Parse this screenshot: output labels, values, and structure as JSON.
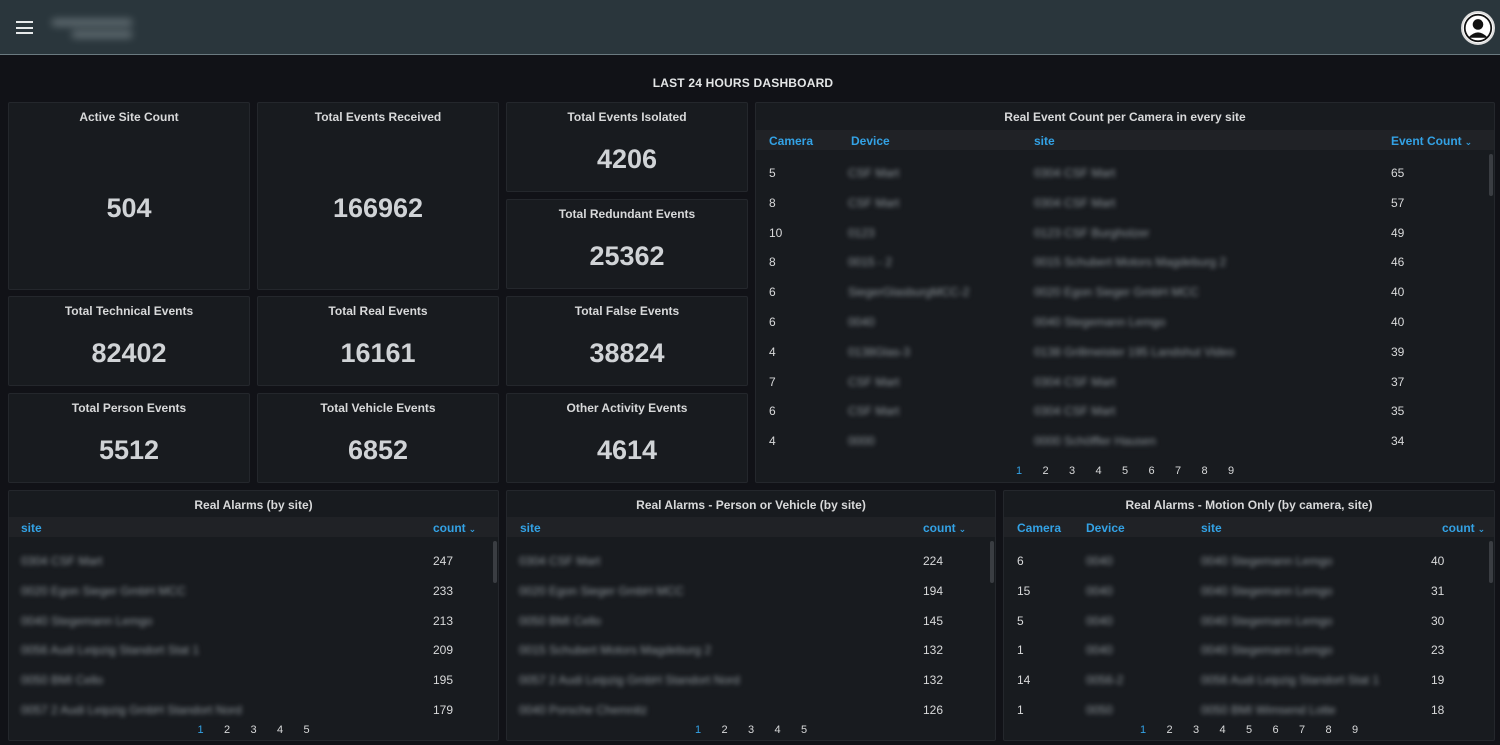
{
  "header": {
    "menu_icon": "hamburger-icon",
    "avatar_icon": "user-avatar-icon"
  },
  "dashboard_title": "LAST 24 HOURS DASHBOARD",
  "stats": {
    "active_site": {
      "title": "Active Site Count",
      "value": "504"
    },
    "events_received": {
      "title": "Total Events Received",
      "value": "166962"
    },
    "events_isolated": {
      "title": "Total Events Isolated",
      "value": "4206"
    },
    "redundant": {
      "title": "Total Redundant Events",
      "value": "25362"
    },
    "technical": {
      "title": "Total Technical Events",
      "value": "82402"
    },
    "real": {
      "title": "Total Real Events",
      "value": "16161"
    },
    "false": {
      "title": "Total False Events",
      "value": "38824"
    },
    "person": {
      "title": "Total Person Events",
      "value": "5512"
    },
    "vehicle": {
      "title": "Total Vehicle Events",
      "value": "6852"
    },
    "other": {
      "title": "Other Activity Events",
      "value": "4614"
    }
  },
  "camera_table": {
    "title": "Real Event Count per Camera in every site",
    "columns": [
      "Camera",
      "Device",
      "site",
      "Event Count"
    ],
    "rows": [
      [
        "5",
        "CSF Mart",
        "0304 CSF Mart",
        "65"
      ],
      [
        "8",
        "CSF Mart",
        "0304 CSF Mart",
        "57"
      ],
      [
        "10",
        "0123",
        "0123 CSF Burgholzer",
        "49"
      ],
      [
        "8",
        "0015 - 2",
        "0015 Schubert Motors Magdeburg 2",
        "46"
      ],
      [
        "6",
        "SiegerGlasburgMCC-2",
        "0020 Egon Sieger GmbH MCC",
        "40"
      ],
      [
        "6",
        "0040",
        "0040 Stegemann Lemgo",
        "40"
      ],
      [
        "4",
        "0138Glas-3",
        "0138 Grillmeister 195 Landshut Video",
        "39"
      ],
      [
        "7",
        "CSF Mart",
        "0304 CSF Mart",
        "37"
      ],
      [
        "6",
        "CSF Mart",
        "0304 CSF Mart",
        "35"
      ],
      [
        "4",
        "0000",
        "0000 Schöffler Hausen",
        "34"
      ]
    ],
    "pages": [
      "1",
      "2",
      "3",
      "4",
      "5",
      "6",
      "7",
      "8",
      "9"
    ],
    "active_page": "1"
  },
  "alarms_by_site": {
    "title": "Real Alarms (by site)",
    "columns": [
      "site",
      "count"
    ],
    "rows": [
      [
        "0304 CSF Mart",
        "247"
      ],
      [
        "0020 Egon Sieger GmbH MCC",
        "233"
      ],
      [
        "0040 Stegemann Lemgo",
        "213"
      ],
      [
        "0056 Audi Leipzig Standort Stat 1",
        "209"
      ],
      [
        "0050 BMI Cello",
        "195"
      ],
      [
        "0057 2 Audi Leipzig GmbH Standort Nord",
        "179"
      ]
    ],
    "pages": [
      "1",
      "2",
      "3",
      "4",
      "5"
    ],
    "active_page": "1"
  },
  "alarms_person_vehicle": {
    "title": "Real Alarms - Person or Vehicle (by site)",
    "columns": [
      "site",
      "count"
    ],
    "rows": [
      [
        "0304 CSF Mart",
        "224"
      ],
      [
        "0020 Egon Sieger GmbH MCC",
        "194"
      ],
      [
        "0050 BMI Cello",
        "145"
      ],
      [
        "0015 Schubert Motors Magdeburg 2",
        "132"
      ],
      [
        "0057 2 Audi Leipzig GmbH Standort Nord",
        "132"
      ],
      [
        "0040 Porsche Chemnitz",
        "126"
      ]
    ],
    "pages": [
      "1",
      "2",
      "3",
      "4",
      "5"
    ],
    "active_page": "1"
  },
  "alarms_motion": {
    "title": "Real Alarms - Motion Only (by camera, site)",
    "columns": [
      "Camera",
      "Device",
      "site",
      "count"
    ],
    "rows": [
      [
        "6",
        "0040",
        "0040 Stegemann Lemgo",
        "40"
      ],
      [
        "15",
        "0040",
        "0040 Stegemann Lemgo",
        "31"
      ],
      [
        "5",
        "0040",
        "0040 Stegemann Lemgo",
        "30"
      ],
      [
        "1",
        "0040",
        "0040 Stegemann Lemgo",
        "23"
      ],
      [
        "14",
        "0056-2",
        "0056 Audi Leipzig Standort Stat 1",
        "19"
      ],
      [
        "1",
        "0050",
        "0050 BMI Wimsend Lotte",
        "18"
      ]
    ],
    "pages": [
      "1",
      "2",
      "3",
      "4",
      "5",
      "6",
      "7",
      "8",
      "9"
    ],
    "active_page": "1"
  },
  "colors": {
    "accent": "#33a2e5",
    "panel": "#181b1f",
    "background": "#111217",
    "topbar": "#2a363c"
  }
}
